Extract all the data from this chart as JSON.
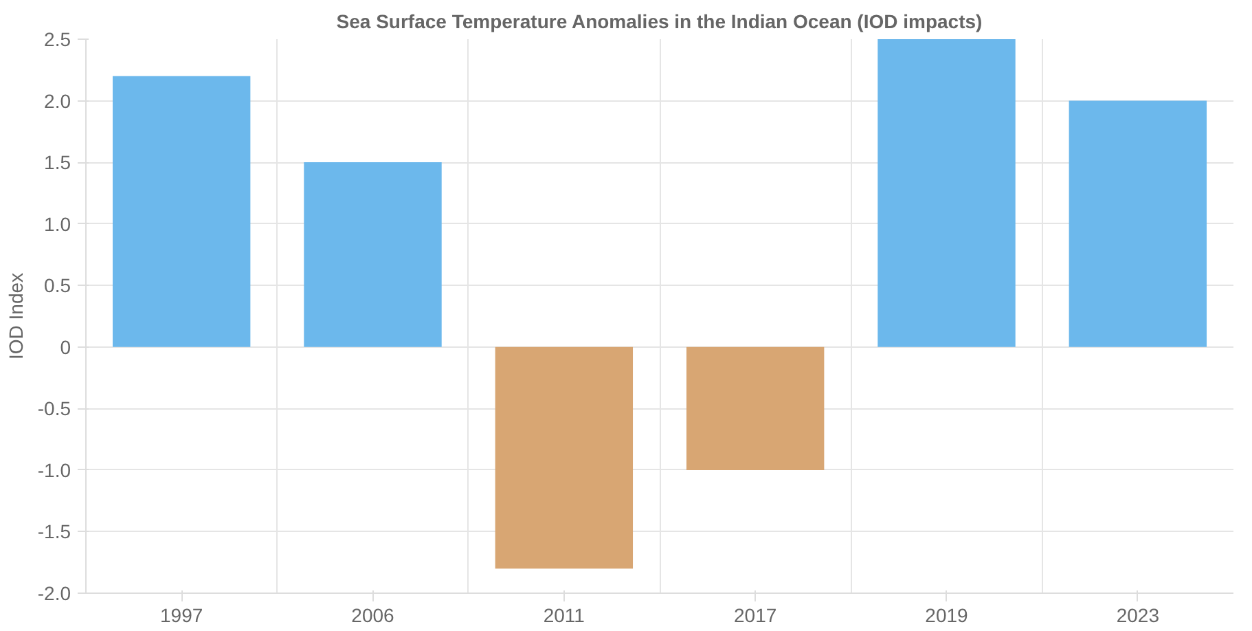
{
  "chart_data": {
    "type": "bar",
    "title": "Sea Surface Temperature Anomalies in the Indian Ocean (IOD impacts)",
    "ylabel": "IOD Index",
    "categories": [
      "1997",
      "2006",
      "2011",
      "2017",
      "2019",
      "2023"
    ],
    "values": [
      2.2,
      1.5,
      -1.8,
      -1.0,
      2.5,
      2.0
    ],
    "colors": [
      "#6cb8ec",
      "#6cb8ec",
      "#d8a673",
      "#d8a673",
      "#6cb8ec",
      "#6cb8ec"
    ],
    "ylim": [
      -2.0,
      2.5
    ],
    "yticks": [
      {
        "value": -2.0,
        "label": "-2.0"
      },
      {
        "value": -1.5,
        "label": "-1.5"
      },
      {
        "value": -1.0,
        "label": "-1.0"
      },
      -0.5,
      0,
      0.5,
      {
        "value": 1.0,
        "label": "1.0"
      },
      1.5,
      {
        "value": 2.0,
        "label": "2.0"
      },
      2.5
    ],
    "grid": true
  }
}
